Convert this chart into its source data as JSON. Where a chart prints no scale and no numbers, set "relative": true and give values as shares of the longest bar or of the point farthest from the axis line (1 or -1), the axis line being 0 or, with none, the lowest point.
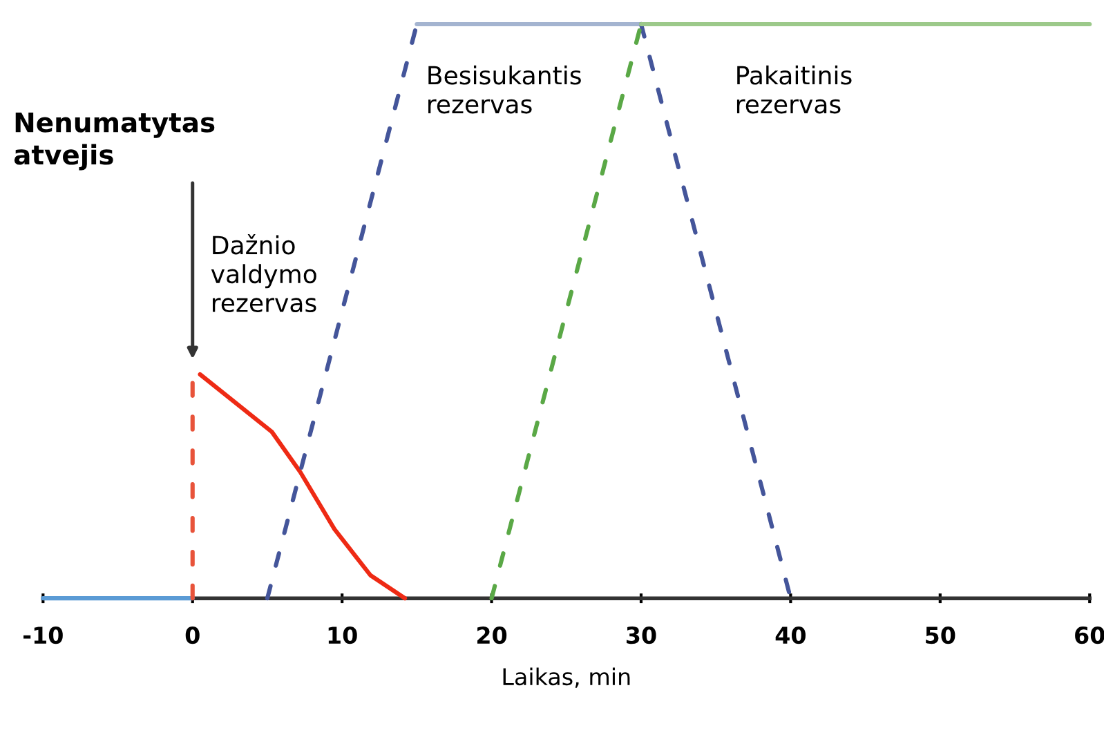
{
  "chart_data": {
    "type": "line",
    "relative": true,
    "xlabel": "Laikas, min",
    "xlim": [
      -10,
      60
    ],
    "xticks": [
      -10,
      0,
      10,
      20,
      30,
      40,
      50,
      60
    ],
    "grid": false,
    "legend": false,
    "series": [
      {
        "color": "#5b9bd5",
        "line_style": "solid",
        "x": [
          -10,
          0
        ],
        "values": [
          0,
          0
        ]
      },
      {
        "color": "#e8533a",
        "line_style": "dashed",
        "x": [
          0,
          0
        ],
        "values": [
          0,
          0.39
        ]
      },
      {
        "color": "#ee2a14",
        "line_style": "solid",
        "x": [
          0.5,
          5.3,
          7.2,
          9.5,
          11.9,
          14.2
        ],
        "values": [
          0.39,
          0.29,
          0.22,
          0.12,
          0.04,
          0
        ]
      },
      {
        "color": "#44559a",
        "line_style": "dashed",
        "x": [
          5,
          15
        ],
        "values": [
          0,
          1
        ]
      },
      {
        "color": "#a4b4d0",
        "line_style": "solid",
        "x": [
          15,
          30
        ],
        "values": [
          1,
          1
        ]
      },
      {
        "color": "#44559a",
        "line_style": "dashed",
        "x": [
          30,
          40
        ],
        "values": [
          1,
          0
        ]
      },
      {
        "color": "#5aa846",
        "line_style": "dashed",
        "x": [
          20,
          30
        ],
        "values": [
          0,
          1
        ]
      },
      {
        "color": "#9cc98a",
        "line_style": "solid",
        "x": [
          30,
          60
        ],
        "values": [
          1,
          1
        ]
      }
    ],
    "annotations": [
      "Nenumatytas\natvejis",
      "Dažnio\nvaldymo\nrezervas",
      "Besisukantis\nrezervas",
      "Pakaitinis\nrezervas"
    ]
  }
}
